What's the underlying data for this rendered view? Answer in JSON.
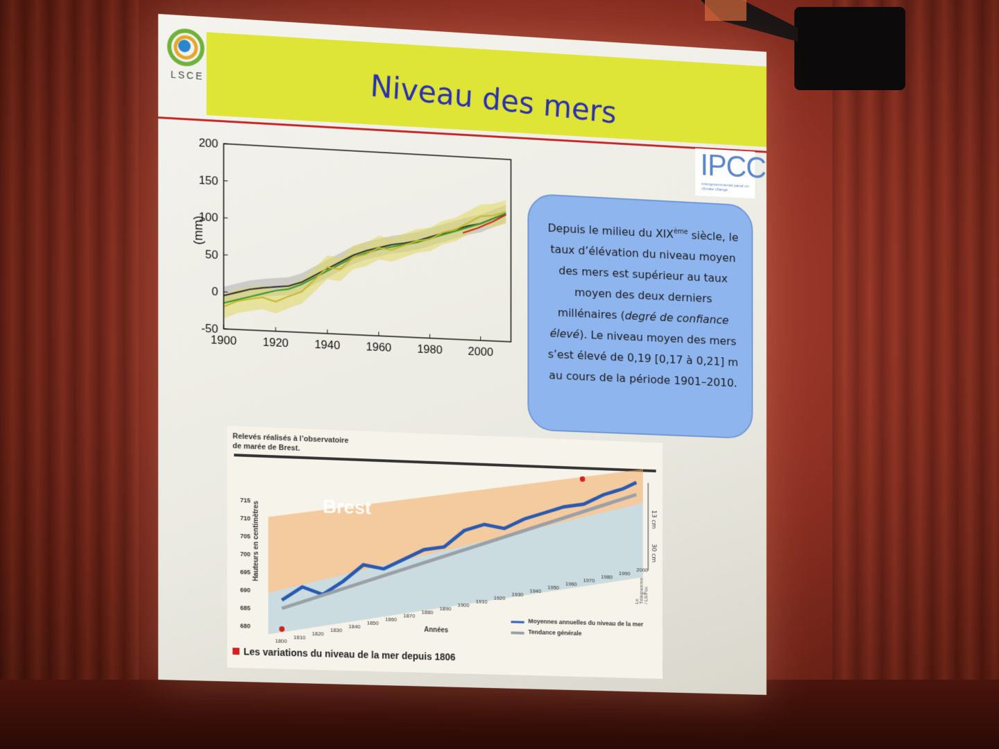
{
  "slide": {
    "logo_text": "LSCE",
    "title": "Niveau des mers",
    "ipcc_logo": "IPCC",
    "ipcc_sub": "intergovernmental panel on climate change"
  },
  "info": {
    "line1": "Depuis le milieu du XIX",
    "line1_sup": "ème",
    "line1_end": " siècle, le taux d’élévation du niveau moyen des mers est supérieur au taux moyen des deux derniers millénaires (",
    "italic": "degré de confiance élevé",
    "line_end": "). Le niveau moyen des mers s’est élevé de 0,19 [0,17 à 0,21] m au cours de la période 1901–2010."
  },
  "chart_data": {
    "type": "line",
    "title": "",
    "xlabel": "",
    "ylabel": "(mm)",
    "xlim": [
      1900,
      2012
    ],
    "ylim": [
      -50,
      200
    ],
    "xticks": [
      1900,
      1920,
      1940,
      1960,
      1980,
      2000
    ],
    "yticks": [
      -50,
      0,
      50,
      100,
      150,
      200
    ],
    "colors": {
      "black": "#333333",
      "green": "#3a9a2a",
      "yellow": "#c8b830",
      "red": "#cc2a2a",
      "band_gray": "#b0b0b0",
      "band_yellow": "#e0d860"
    },
    "series": [
      {
        "key": "black",
        "x": [
          1900,
          1905,
          1910,
          1915,
          1920,
          1925,
          1930,
          1935,
          1940,
          1945,
          1950,
          1955,
          1960,
          1965,
          1970,
          1975,
          1980,
          1985,
          1990,
          1995,
          2000,
          2005,
          2010
        ],
        "y": [
          -5,
          0,
          5,
          8,
          10,
          12,
          18,
          28,
          38,
          48,
          58,
          65,
          70,
          75,
          78,
          82,
          88,
          94,
          100,
          106,
          110,
          118,
          125
        ]
      },
      {
        "key": "green",
        "x": [
          1900,
          1905,
          1910,
          1915,
          1920,
          1925,
          1930,
          1935,
          1940,
          1945,
          1950,
          1955,
          1960,
          1965,
          1970,
          1975,
          1980,
          1985,
          1990,
          1995,
          2000,
          2005,
          2010
        ],
        "y": [
          -15,
          -10,
          -5,
          0,
          5,
          8,
          15,
          25,
          35,
          45,
          55,
          62,
          68,
          72,
          76,
          80,
          86,
          92,
          98,
          104,
          110,
          118,
          126
        ]
      },
      {
        "key": "yellow",
        "x": [
          1900,
          1905,
          1910,
          1915,
          1920,
          1925,
          1930,
          1935,
          1940,
          1945,
          1950,
          1955,
          1960,
          1965,
          1970,
          1975,
          1980,
          1985,
          1990,
          1995,
          2000,
          2005,
          2010
        ],
        "y": [
          -20,
          -12,
          -8,
          -5,
          -10,
          -2,
          5,
          22,
          40,
          38,
          55,
          60,
          70,
          68,
          75,
          82,
          85,
          95,
          100,
          110,
          120,
          122,
          128
        ]
      },
      {
        "key": "red",
        "x": [
          1993,
          1996,
          1999,
          2002,
          2005,
          2008,
          2010
        ],
        "y": [
          96,
          100,
          104,
          109,
          114,
          120,
          124
        ]
      }
    ]
  },
  "brest": {
    "header_l1": "Relevés réalisés à l’observatoire",
    "header_l2": "de marée de Brest.",
    "word": "Brest",
    "ylabel": "Hauteurs en centimètres",
    "xlabel": "Années",
    "legend1": "Moyennes annuelles du niveau de la mer",
    "legend2": "Tendance générale",
    "caption": "Les variations du niveau de la mer depuis 1806",
    "dim1": "13 cm",
    "dim2": "30 cm",
    "credit": "Le Télégramme / LS/Fox",
    "yticks": [
      680,
      685,
      690,
      695,
      700,
      705,
      710,
      715
    ],
    "xticks": [
      1800,
      1810,
      1820,
      1830,
      1840,
      1850,
      1860,
      1870,
      1880,
      1890,
      1900,
      1910,
      1920,
      1930,
      1940,
      1950,
      1960,
      1970,
      1980,
      1990,
      2000
    ]
  }
}
